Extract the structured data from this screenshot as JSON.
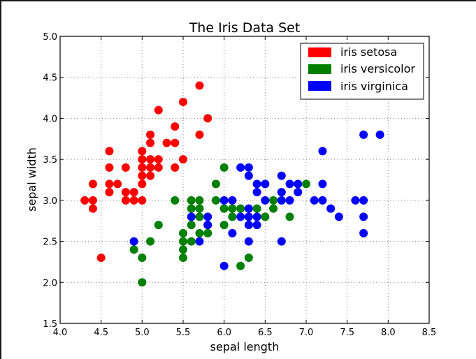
{
  "chart_data": {
    "type": "scatter",
    "title": "The Iris Data Set",
    "xlabel": "sepal length",
    "ylabel": "sepal width",
    "xlim": [
      4.0,
      8.5
    ],
    "ylim": [
      1.5,
      5.0
    ],
    "xticks": [
      "4.0",
      "4.5",
      "5.0",
      "5.5",
      "6.0",
      "6.5",
      "7.0",
      "7.5",
      "8.0",
      "8.5"
    ],
    "yticks": [
      "1.5",
      "2.0",
      "2.5",
      "3.0",
      "3.5",
      "4.0",
      "4.5",
      "5.0"
    ],
    "grid": true,
    "legend_position": "upper right",
    "series": [
      {
        "name": "iris setosa",
        "color": "#ff0000",
        "points": [
          [
            5.7,
            4.4
          ],
          [
            5.5,
            4.2
          ],
          [
            5.2,
            4.1
          ],
          [
            5.8,
            4.0
          ],
          [
            5.4,
            3.9
          ],
          [
            5.1,
            3.8
          ],
          [
            5.7,
            3.8
          ],
          [
            5.1,
            3.7
          ],
          [
            5.3,
            3.7
          ],
          [
            5.4,
            3.7
          ],
          [
            4.6,
            3.6
          ],
          [
            5.0,
            3.6
          ],
          [
            5.0,
            3.5
          ],
          [
            5.1,
            3.5
          ],
          [
            5.2,
            3.5
          ],
          [
            5.5,
            3.5
          ],
          [
            4.6,
            3.4
          ],
          [
            4.8,
            3.4
          ],
          [
            5.0,
            3.4
          ],
          [
            5.1,
            3.4
          ],
          [
            5.2,
            3.4
          ],
          [
            5.4,
            3.4
          ],
          [
            5.0,
            3.3
          ],
          [
            5.1,
            3.3
          ],
          [
            4.4,
            3.2
          ],
          [
            4.6,
            3.2
          ],
          [
            4.7,
            3.2
          ],
          [
            5.0,
            3.2
          ],
          [
            4.6,
            3.1
          ],
          [
            4.8,
            3.1
          ],
          [
            4.9,
            3.1
          ],
          [
            4.3,
            3.0
          ],
          [
            4.4,
            3.0
          ],
          [
            4.8,
            3.0
          ],
          [
            4.9,
            3.0
          ],
          [
            5.0,
            3.0
          ],
          [
            4.4,
            2.9
          ],
          [
            4.5,
            2.3
          ]
        ]
      },
      {
        "name": "iris versicolor",
        "color": "#008000",
        "points": [
          [
            6.0,
            3.4
          ],
          [
            5.9,
            3.2
          ],
          [
            7.0,
            3.2
          ],
          [
            5.4,
            3.0
          ],
          [
            5.6,
            3.0
          ],
          [
            5.7,
            3.0
          ],
          [
            5.9,
            3.0
          ],
          [
            6.6,
            3.0
          ],
          [
            5.6,
            2.9
          ],
          [
            5.7,
            2.9
          ],
          [
            6.0,
            2.9
          ],
          [
            6.1,
            2.9
          ],
          [
            6.2,
            2.9
          ],
          [
            6.4,
            2.9
          ],
          [
            6.6,
            2.9
          ],
          [
            5.7,
            2.8
          ],
          [
            6.1,
            2.8
          ],
          [
            6.5,
            2.8
          ],
          [
            6.8,
            2.8
          ],
          [
            5.2,
            2.7
          ],
          [
            5.6,
            2.7
          ],
          [
            5.8,
            2.7
          ],
          [
            6.0,
            2.7
          ],
          [
            5.5,
            2.6
          ],
          [
            5.7,
            2.6
          ],
          [
            5.8,
            2.6
          ],
          [
            5.1,
            2.5
          ],
          [
            5.5,
            2.5
          ],
          [
            5.6,
            2.5
          ],
          [
            4.9,
            2.4
          ],
          [
            5.5,
            2.4
          ],
          [
            5.0,
            2.3
          ],
          [
            5.5,
            2.3
          ],
          [
            6.3,
            2.3
          ],
          [
            6.2,
            2.2
          ],
          [
            5.0,
            2.0
          ]
        ]
      },
      {
        "name": "iris virginica",
        "color": "#0000ff",
        "points": [
          [
            7.7,
            3.8
          ],
          [
            7.9,
            3.8
          ],
          [
            7.2,
            3.6
          ],
          [
            6.2,
            3.4
          ],
          [
            6.3,
            3.4
          ],
          [
            6.3,
            3.3
          ],
          [
            6.7,
            3.3
          ],
          [
            6.4,
            3.2
          ],
          [
            6.5,
            3.2
          ],
          [
            6.8,
            3.2
          ],
          [
            6.9,
            3.2
          ],
          [
            7.2,
            3.2
          ],
          [
            6.4,
            3.1
          ],
          [
            6.7,
            3.1
          ],
          [
            6.9,
            3.1
          ],
          [
            6.0,
            3.0
          ],
          [
            6.1,
            3.0
          ],
          [
            6.5,
            3.0
          ],
          [
            6.7,
            3.0
          ],
          [
            6.8,
            3.0
          ],
          [
            7.1,
            3.0
          ],
          [
            7.2,
            3.0
          ],
          [
            7.6,
            3.0
          ],
          [
            7.7,
            3.0
          ],
          [
            6.3,
            2.9
          ],
          [
            7.3,
            2.9
          ],
          [
            5.6,
            2.8
          ],
          [
            5.8,
            2.8
          ],
          [
            6.2,
            2.8
          ],
          [
            6.3,
            2.8
          ],
          [
            6.4,
            2.8
          ],
          [
            7.4,
            2.8
          ],
          [
            7.7,
            2.8
          ],
          [
            5.8,
            2.7
          ],
          [
            6.3,
            2.7
          ],
          [
            6.4,
            2.7
          ],
          [
            6.1,
            2.6
          ],
          [
            7.7,
            2.6
          ],
          [
            4.9,
            2.5
          ],
          [
            5.7,
            2.5
          ],
          [
            6.3,
            2.5
          ],
          [
            6.7,
            2.5
          ],
          [
            6.0,
            2.2
          ]
        ]
      }
    ]
  }
}
